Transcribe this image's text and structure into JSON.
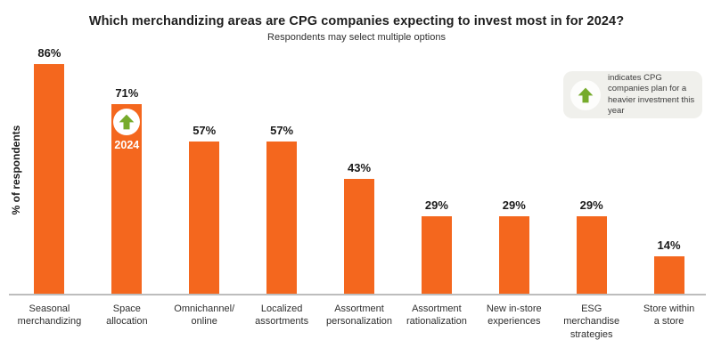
{
  "chart_data": {
    "type": "bar",
    "title": "Which merchandizing areas are CPG companies expecting to invest most in for 2024?",
    "subtitle": "Respondents may select multiple options",
    "ylabel": "% of respondents",
    "xlabel": "",
    "categories": [
      "Seasonal\nmerchandizing",
      "Space\nallocation",
      "Omnichannel/\nonline",
      "Localized\nassortments",
      "Assortment\npersonalization",
      "Assortment\nrationalization",
      "New in-store\nexperiences",
      "ESG\nmerchandise\nstrategies",
      "Store within\na store"
    ],
    "values": [
      86,
      71,
      57,
      57,
      43,
      29,
      29,
      29,
      14
    ],
    "value_suffix": "%",
    "ylim": [
      0,
      100
    ],
    "grid": false,
    "legend_position": "top-right",
    "highlight": {
      "index": 1,
      "badge_label": "2024",
      "icon": "up-arrow-icon"
    }
  },
  "legend": {
    "icon": "up-arrow-icon",
    "text": "indicates CPG companies plan for a heavier investment this year"
  },
  "colors": {
    "bar": "#f4671e",
    "arrow_green": "#76ab2b",
    "legend_bg": "#f0f0ec",
    "axis_line": "#bdbdbd",
    "title_text": "#1e1e1e"
  }
}
